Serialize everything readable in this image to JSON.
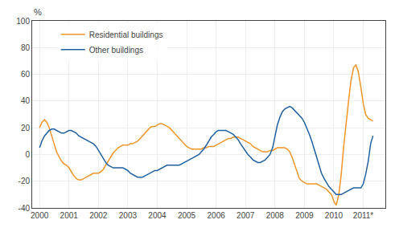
{
  "chart_data": {
    "type": "line",
    "ylabel": "%",
    "x": [
      2000.0,
      2000.08,
      2000.17,
      2000.25,
      2000.33,
      2000.42,
      2000.5,
      2000.58,
      2000.67,
      2000.75,
      2000.83,
      2000.92,
      2001.0,
      2001.08,
      2001.17,
      2001.25,
      2001.33,
      2001.42,
      2001.5,
      2001.58,
      2001.67,
      2001.75,
      2001.83,
      2001.92,
      2002.0,
      2002.08,
      2002.17,
      2002.25,
      2002.33,
      2002.42,
      2002.5,
      2002.58,
      2002.67,
      2002.75,
      2002.83,
      2002.92,
      2003.0,
      2003.08,
      2003.17,
      2003.25,
      2003.33,
      2003.42,
      2003.5,
      2003.58,
      2003.67,
      2003.75,
      2003.83,
      2003.92,
      2004.0,
      2004.08,
      2004.17,
      2004.25,
      2004.33,
      2004.42,
      2004.5,
      2004.58,
      2004.67,
      2004.75,
      2004.83,
      2004.92,
      2005.0,
      2005.08,
      2005.17,
      2005.25,
      2005.33,
      2005.42,
      2005.5,
      2005.58,
      2005.67,
      2005.75,
      2005.83,
      2005.92,
      2006.0,
      2006.08,
      2006.17,
      2006.25,
      2006.33,
      2006.42,
      2006.5,
      2006.58,
      2006.67,
      2006.75,
      2006.83,
      2006.92,
      2007.0,
      2007.08,
      2007.17,
      2007.25,
      2007.33,
      2007.42,
      2007.5,
      2007.58,
      2007.67,
      2007.75,
      2007.83,
      2007.92,
      2008.0,
      2008.08,
      2008.17,
      2008.25,
      2008.33,
      2008.42,
      2008.5,
      2008.58,
      2008.67,
      2008.75,
      2008.83,
      2008.92,
      2009.0,
      2009.08,
      2009.17,
      2009.25,
      2009.33,
      2009.42,
      2009.5,
      2009.58,
      2009.67,
      2009.75,
      2009.83,
      2009.92,
      2010.0,
      2010.08,
      2010.17,
      2010.25,
      2010.33,
      2010.42,
      2010.5,
      2010.58,
      2010.67,
      2010.75,
      2010.83,
      2010.92,
      2011.0,
      2011.08,
      2011.17,
      2011.25,
      2011.33
    ],
    "series": [
      {
        "name": "Residential buildings",
        "color": "#f0952a",
        "values": [
          20,
          24,
          26,
          24,
          20,
          14,
          8,
          2,
          -2,
          -5,
          -7,
          -8,
          -10,
          -13,
          -16,
          -18,
          -19,
          -19,
          -18,
          -17,
          -16,
          -15,
          -14,
          -14,
          -14,
          -13,
          -11,
          -8,
          -5,
          -2,
          1,
          3,
          5,
          6,
          7,
          7,
          7,
          8,
          8,
          9,
          10,
          12,
          14,
          16,
          18,
          20,
          21,
          21,
          22,
          23,
          23,
          22,
          21,
          20,
          18,
          16,
          14,
          12,
          10,
          8,
          6,
          5,
          4,
          4,
          4,
          4,
          4,
          5,
          5,
          6,
          6,
          6,
          7,
          8,
          9,
          10,
          11,
          12,
          12,
          13,
          13,
          13,
          12,
          11,
          10,
          9,
          8,
          6,
          5,
          4,
          3,
          2,
          2,
          2,
          3,
          3,
          4,
          5,
          5,
          5,
          5,
          4,
          2,
          -2,
          -8,
          -14,
          -18,
          -20,
          -21,
          -22,
          -22,
          -22,
          -22,
          -22,
          -23,
          -24,
          -25,
          -26,
          -28,
          -30,
          -35,
          -38,
          -30,
          -15,
          5,
          25,
          40,
          55,
          65,
          67,
          62,
          50,
          38,
          30,
          27,
          26,
          25
        ]
      },
      {
        "name": "Other buildings",
        "color": "#2060a0",
        "values": [
          5,
          10,
          14,
          16,
          18,
          19,
          19,
          18,
          17,
          16,
          16,
          17,
          18,
          18,
          17,
          16,
          14,
          13,
          12,
          11,
          10,
          9,
          8,
          6,
          3,
          0,
          -3,
          -6,
          -8,
          -9,
          -10,
          -10,
          -10,
          -10,
          -10,
          -11,
          -12,
          -14,
          -15,
          -16,
          -17,
          -17,
          -17,
          -16,
          -15,
          -14,
          -13,
          -12,
          -12,
          -11,
          -10,
          -9,
          -8,
          -8,
          -8,
          -8,
          -8,
          -8,
          -7,
          -6,
          -5,
          -4,
          -3,
          -2,
          -1,
          0,
          2,
          4,
          7,
          10,
          13,
          15,
          17,
          18,
          18,
          18,
          18,
          17,
          16,
          15,
          13,
          11,
          8,
          5,
          2,
          0,
          -2,
          -4,
          -5,
          -6,
          -6,
          -5,
          -4,
          -2,
          0,
          5,
          14,
          22,
          28,
          32,
          34,
          35,
          36,
          35,
          33,
          31,
          29,
          27,
          24,
          20,
          15,
          10,
          4,
          -2,
          -8,
          -14,
          -18,
          -21,
          -24,
          -26,
          -28,
          -30,
          -30,
          -30,
          -29,
          -28,
          -27,
          -26,
          -25,
          -25,
          -25,
          -25,
          -22,
          -15,
          -5,
          8,
          14
        ]
      }
    ],
    "xlim": [
      1999.75,
      2011.75
    ],
    "xticks": [
      2000,
      2001,
      2002,
      2003,
      2004,
      2005,
      2006,
      2007,
      2008,
      2009,
      2010,
      {
        "value": 2011,
        "label": "2011*"
      }
    ],
    "ylim": [
      -40,
      100
    ],
    "yticks": [
      -40,
      -20,
      0,
      20,
      40,
      60,
      80,
      100
    ],
    "grid": true,
    "legend": "upper left"
  }
}
